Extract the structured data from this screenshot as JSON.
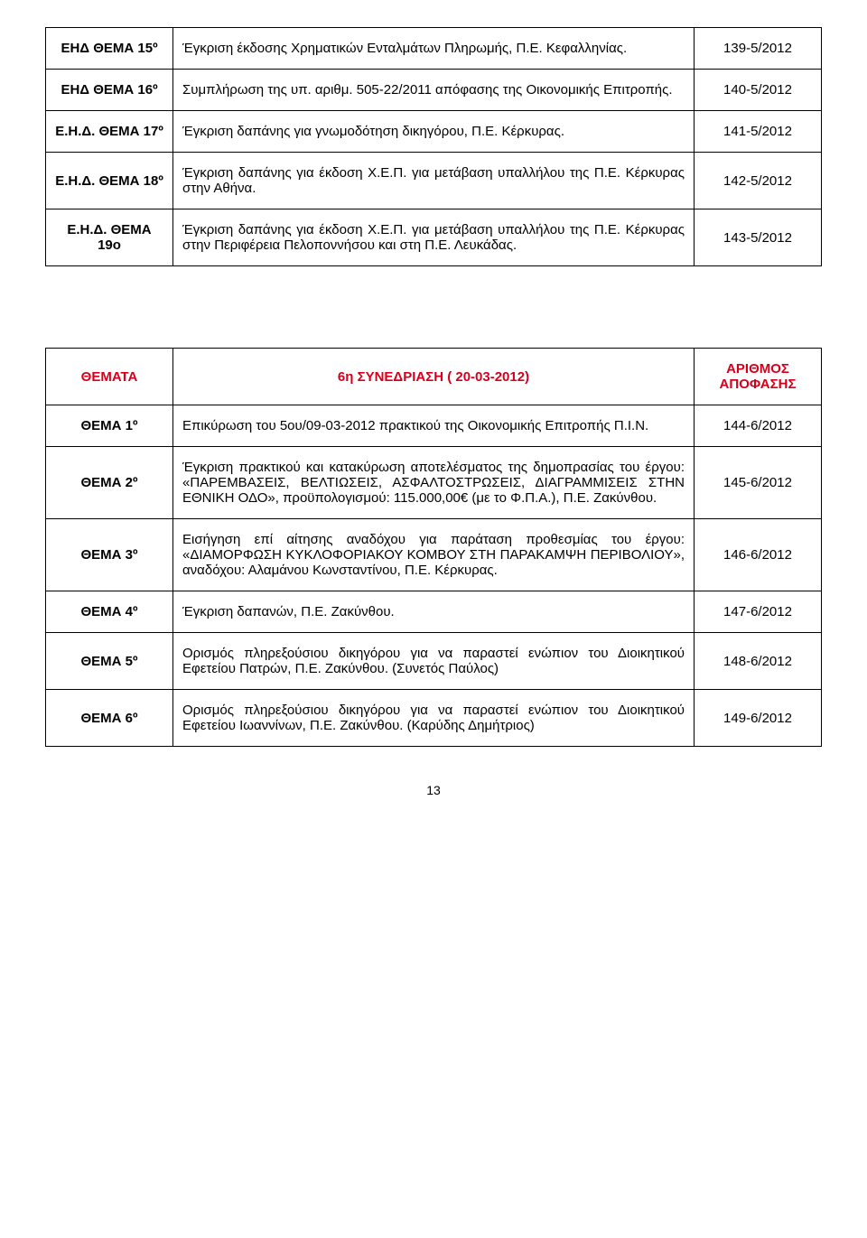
{
  "table1": {
    "rows": [
      {
        "label": "ΕΗΔ ΘΕΜΑ 15º",
        "desc": "Έγκριση έκδοσης Χρηματικών Ενταλμάτων Πληρωμής, Π.Ε. Κεφαλληνίας.",
        "ref": "139-5/2012"
      },
      {
        "label": "ΕΗΔ ΘΕΜΑ 16º",
        "desc": "Συμπλήρωση της υπ. αριθμ. 505-22/2011 απόφασης της Οικονομικής Επιτροπής.",
        "ref": "140-5/2012"
      },
      {
        "label": "Ε.Η.Δ. ΘΕΜΑ 17º",
        "desc": "Έγκριση δαπάνης για γνωμοδότηση δικηγόρου, Π.Ε. Κέρκυρας.",
        "ref": "141-5/2012"
      },
      {
        "label": "Ε.Η.Δ. ΘΕΜΑ 18º",
        "desc": "Έγκριση δαπάνης για έκδοση Χ.Ε.Π. για μετάβαση υπαλλήλου της Π.Ε. Κέρκυρας στην Αθήνα.",
        "ref": "142-5/2012"
      },
      {
        "label": "Ε.Η.Δ. ΘΕΜΑ 19ο",
        "desc": "Έγκριση δαπάνης για έκδοση Χ.Ε.Π. για μετάβαση υπαλλήλου της Π.Ε. Κέρκυρας στην Περιφέρεια Πελοποννήσου και στη Π.Ε. Λευκάδας.",
        "ref": "143-5/2012"
      }
    ]
  },
  "table2": {
    "header": {
      "left": "ΘΕΜΑΤΑ",
      "center": "6η ΣΥΝΕΔΡΙΑΣΗ ( 20-03-2012)",
      "right": "ΑΡΙΘΜΟΣ ΑΠΟΦΑΣΗΣ"
    },
    "rows": [
      {
        "label": "ΘΕΜΑ 1º",
        "desc": "Επικύρωση του 5ου/09-03-2012 πρακτικού της Οικονομικής Επιτροπής Π.Ι.Ν.",
        "ref": "144-6/2012"
      },
      {
        "label": "ΘΕΜΑ 2º",
        "desc": "Έγκριση πρακτικού και κατακύρωση αποτελέσματος της δημοπρασίας του έργου: «ΠΑΡΕΜΒΑΣΕΙΣ, ΒΕΛΤΙΩΣΕΙΣ, ΑΣΦΑΛΤΟΣΤΡΩΣΕΙΣ, ΔΙΑΓΡΑΜΜΙΣΕΙΣ ΣΤΗΝ ΕΘΝΙΚΗ ΟΔΟ», προϋπολογισμού: 115.000,00€ (με το Φ.Π.Α.), Π.Ε. Ζακύνθου.",
        "ref": "145-6/2012"
      },
      {
        "label": "ΘΕΜΑ 3º",
        "desc": "Εισήγηση επί αίτησης αναδόχου για παράταση προθεσμίας του έργου: «ΔΙΑΜΟΡΦΩΣΗ ΚΥΚΛΟΦΟΡΙΑΚΟΥ ΚΟΜΒΟΥ ΣΤΗ ΠΑΡΑΚΑΜΨΗ ΠΕΡΙΒΟΛΙΟΥ», αναδόχου: Αλαμάνου Κωνσταντίνου, Π.Ε. Κέρκυρας.",
        "ref": "146-6/2012"
      },
      {
        "label": "ΘΕΜΑ 4º",
        "desc": "Έγκριση δαπανών, Π.Ε. Ζακύνθου.",
        "ref": "147-6/2012"
      },
      {
        "label": "ΘΕΜΑ 5º",
        "desc": "Ορισμός πληρεξούσιου δικηγόρου για να παραστεί ενώπιον του Διοικητικού Εφετείου Πατρών, Π.Ε. Ζακύνθου. (Συνετός Παύλος)",
        "ref": "148-6/2012"
      },
      {
        "label": "ΘΕΜΑ 6º",
        "desc": "Ορισμός πληρεξούσιου δικηγόρου για να παραστεί ενώπιον του Διοικητικού Εφετείου Ιωαννίνων, Π.Ε. Ζακύνθου. (Καρύδης Δημήτριος)",
        "ref": "149-6/2012"
      }
    ]
  },
  "page_number": "13"
}
